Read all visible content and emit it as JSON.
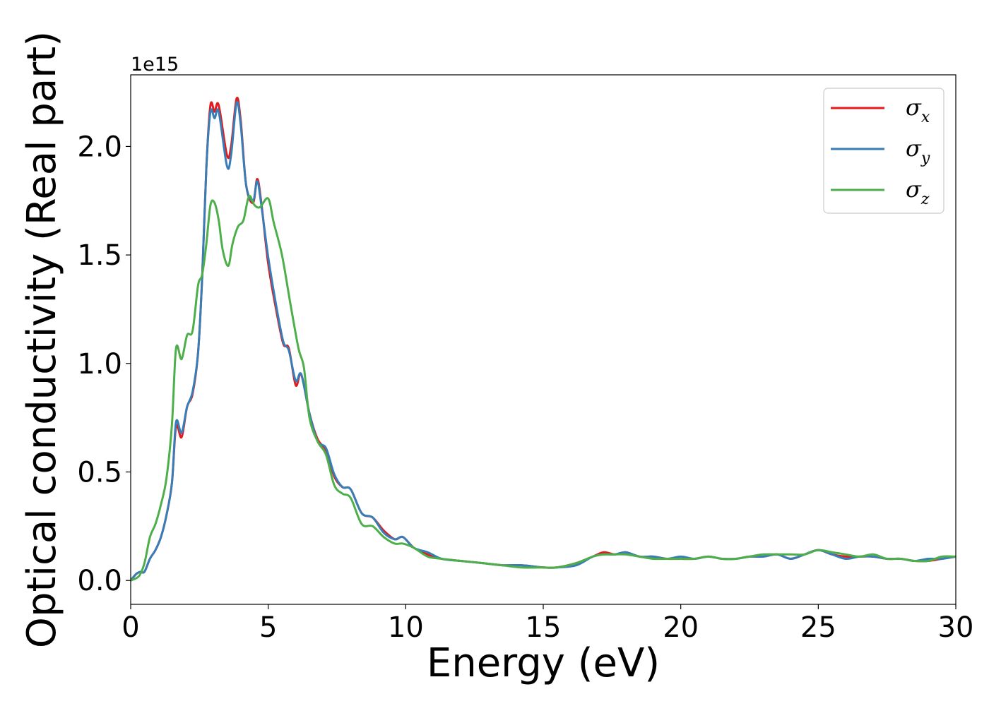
{
  "chart_data": {
    "type": "line",
    "xlabel": "Energy (eV)",
    "ylabel": "Optical conductivity (Real part)",
    "y_offset_label": "1e15",
    "xlim": [
      0,
      30
    ],
    "ylim": [
      -0.11,
      2.33
    ],
    "x_ticks": [
      0,
      5,
      10,
      15,
      20,
      25,
      30
    ],
    "x_tick_labels": [
      "0",
      "5",
      "10",
      "15",
      "20",
      "25",
      "30"
    ],
    "y_ticks": [
      0.0,
      0.5,
      1.0,
      1.5,
      2.0
    ],
    "y_tick_labels": [
      "0.0",
      "0.5",
      "1.0",
      "1.5",
      "2.0"
    ],
    "grid": false,
    "legend_position": "top-right",
    "legend": [
      {
        "symbol": "σ",
        "sub": "x",
        "color": "#e41a1c"
      },
      {
        "symbol": "σ",
        "sub": "y",
        "color": "#377eb8"
      },
      {
        "symbol": "σ",
        "sub": "z",
        "color": "#4daf4a"
      }
    ],
    "series": [
      {
        "key": "sigma_x",
        "color": "#e41a1c",
        "points": [
          [
            0,
            0.0
          ],
          [
            0.2,
            0.03
          ],
          [
            0.35,
            0.04
          ],
          [
            0.5,
            0.04
          ],
          [
            0.7,
            0.1
          ],
          [
            0.9,
            0.14
          ],
          [
            1.1,
            0.2
          ],
          [
            1.3,
            0.3
          ],
          [
            1.5,
            0.45
          ],
          [
            1.65,
            0.71
          ],
          [
            1.85,
            0.66
          ],
          [
            2.05,
            0.8
          ],
          [
            2.25,
            0.86
          ],
          [
            2.45,
            1.05
          ],
          [
            2.6,
            1.4
          ],
          [
            2.75,
            1.9
          ],
          [
            2.9,
            2.19
          ],
          [
            3.05,
            2.16
          ],
          [
            3.2,
            2.19
          ],
          [
            3.5,
            1.96
          ],
          [
            3.65,
            2.0
          ],
          [
            3.85,
            2.22
          ],
          [
            4.0,
            2.12
          ],
          [
            4.2,
            1.82
          ],
          [
            4.45,
            1.74
          ],
          [
            4.6,
            1.85
          ],
          [
            4.75,
            1.74
          ],
          [
            5.0,
            1.46
          ],
          [
            5.3,
            1.24
          ],
          [
            5.55,
            1.09
          ],
          [
            5.75,
            1.07
          ],
          [
            6.0,
            0.9
          ],
          [
            6.2,
            0.95
          ],
          [
            6.5,
            0.77
          ],
          [
            6.8,
            0.65
          ],
          [
            7.1,
            0.6
          ],
          [
            7.4,
            0.48
          ],
          [
            7.7,
            0.43
          ],
          [
            8.0,
            0.42
          ],
          [
            8.4,
            0.31
          ],
          [
            8.8,
            0.29
          ],
          [
            9.2,
            0.23
          ],
          [
            9.6,
            0.19
          ],
          [
            9.9,
            0.2
          ],
          [
            10.3,
            0.15
          ],
          [
            10.8,
            0.12
          ],
          [
            11.3,
            0.1
          ],
          [
            12.0,
            0.09
          ],
          [
            12.8,
            0.08
          ],
          [
            13.5,
            0.07
          ],
          [
            14.2,
            0.07
          ],
          [
            15.0,
            0.06
          ],
          [
            15.5,
            0.06
          ],
          [
            16.2,
            0.08
          ],
          [
            16.8,
            0.11
          ],
          [
            17.2,
            0.13
          ],
          [
            17.6,
            0.12
          ],
          [
            18.0,
            0.13
          ],
          [
            18.5,
            0.11
          ],
          [
            19.0,
            0.11
          ],
          [
            19.5,
            0.1
          ],
          [
            20.0,
            0.1
          ],
          [
            20.5,
            0.1
          ],
          [
            21.0,
            0.11
          ],
          [
            21.5,
            0.1
          ],
          [
            22.0,
            0.1
          ],
          [
            22.5,
            0.11
          ],
          [
            23.0,
            0.11
          ],
          [
            23.5,
            0.12
          ],
          [
            24.0,
            0.1
          ],
          [
            24.5,
            0.12
          ],
          [
            25.0,
            0.14
          ],
          [
            25.5,
            0.12
          ],
          [
            26.0,
            0.11
          ],
          [
            26.5,
            0.11
          ],
          [
            27.0,
            0.11
          ],
          [
            27.5,
            0.1
          ],
          [
            28.0,
            0.1
          ],
          [
            28.5,
            0.09
          ],
          [
            29.0,
            0.09
          ],
          [
            29.5,
            0.1
          ],
          [
            30.0,
            0.11
          ]
        ]
      },
      {
        "key": "sigma_y",
        "color": "#377eb8",
        "points": [
          [
            0,
            0.0
          ],
          [
            0.2,
            0.03
          ],
          [
            0.35,
            0.04
          ],
          [
            0.5,
            0.04
          ],
          [
            0.7,
            0.1
          ],
          [
            0.9,
            0.14
          ],
          [
            1.1,
            0.2
          ],
          [
            1.3,
            0.3
          ],
          [
            1.5,
            0.45
          ],
          [
            1.65,
            0.73
          ],
          [
            1.85,
            0.68
          ],
          [
            2.05,
            0.8
          ],
          [
            2.25,
            0.87
          ],
          [
            2.45,
            1.05
          ],
          [
            2.6,
            1.4
          ],
          [
            2.75,
            1.9
          ],
          [
            2.9,
            2.16
          ],
          [
            3.05,
            2.13
          ],
          [
            3.2,
            2.16
          ],
          [
            3.5,
            1.91
          ],
          [
            3.65,
            1.96
          ],
          [
            3.85,
            2.2
          ],
          [
            4.0,
            2.1
          ],
          [
            4.2,
            1.82
          ],
          [
            4.45,
            1.75
          ],
          [
            4.6,
            1.84
          ],
          [
            4.75,
            1.73
          ],
          [
            5.0,
            1.49
          ],
          [
            5.3,
            1.26
          ],
          [
            5.55,
            1.1
          ],
          [
            5.75,
            1.06
          ],
          [
            6.0,
            0.92
          ],
          [
            6.2,
            0.95
          ],
          [
            6.5,
            0.77
          ],
          [
            6.8,
            0.64
          ],
          [
            7.1,
            0.61
          ],
          [
            7.4,
            0.49
          ],
          [
            7.7,
            0.43
          ],
          [
            8.0,
            0.42
          ],
          [
            8.4,
            0.31
          ],
          [
            8.8,
            0.29
          ],
          [
            9.2,
            0.22
          ],
          [
            9.6,
            0.19
          ],
          [
            9.9,
            0.2
          ],
          [
            10.3,
            0.15
          ],
          [
            10.8,
            0.13
          ],
          [
            11.3,
            0.1
          ],
          [
            12.0,
            0.09
          ],
          [
            12.8,
            0.08
          ],
          [
            13.5,
            0.07
          ],
          [
            14.2,
            0.07
          ],
          [
            15.0,
            0.06
          ],
          [
            15.5,
            0.06
          ],
          [
            16.2,
            0.07
          ],
          [
            16.8,
            0.11
          ],
          [
            17.2,
            0.12
          ],
          [
            17.6,
            0.12
          ],
          [
            18.0,
            0.13
          ],
          [
            18.5,
            0.11
          ],
          [
            19.0,
            0.11
          ],
          [
            19.5,
            0.1
          ],
          [
            20.0,
            0.11
          ],
          [
            20.5,
            0.1
          ],
          [
            21.0,
            0.11
          ],
          [
            21.5,
            0.1
          ],
          [
            22.0,
            0.1
          ],
          [
            22.5,
            0.11
          ],
          [
            23.0,
            0.11
          ],
          [
            23.5,
            0.12
          ],
          [
            24.0,
            0.1
          ],
          [
            24.5,
            0.12
          ],
          [
            25.0,
            0.14
          ],
          [
            25.5,
            0.12
          ],
          [
            26.0,
            0.1
          ],
          [
            26.5,
            0.11
          ],
          [
            27.0,
            0.11
          ],
          [
            27.5,
            0.1
          ],
          [
            28.0,
            0.1
          ],
          [
            28.5,
            0.09
          ],
          [
            29.0,
            0.1
          ],
          [
            29.5,
            0.1
          ],
          [
            30.0,
            0.11
          ]
        ]
      },
      {
        "key": "sigma_z",
        "color": "#4daf4a",
        "points": [
          [
            0,
            0.0
          ],
          [
            0.3,
            0.02
          ],
          [
            0.5,
            0.08
          ],
          [
            0.7,
            0.2
          ],
          [
            0.9,
            0.26
          ],
          [
            1.1,
            0.35
          ],
          [
            1.3,
            0.47
          ],
          [
            1.5,
            0.72
          ],
          [
            1.65,
            1.07
          ],
          [
            1.85,
            1.02
          ],
          [
            2.05,
            1.13
          ],
          [
            2.25,
            1.15
          ],
          [
            2.45,
            1.36
          ],
          [
            2.6,
            1.41
          ],
          [
            2.75,
            1.55
          ],
          [
            2.9,
            1.73
          ],
          [
            3.05,
            1.74
          ],
          [
            3.2,
            1.66
          ],
          [
            3.35,
            1.52
          ],
          [
            3.55,
            1.45
          ],
          [
            3.7,
            1.55
          ],
          [
            3.9,
            1.63
          ],
          [
            4.1,
            1.66
          ],
          [
            4.3,
            1.77
          ],
          [
            4.5,
            1.73
          ],
          [
            4.7,
            1.72
          ],
          [
            5.0,
            1.76
          ],
          [
            5.2,
            1.65
          ],
          [
            5.5,
            1.5
          ],
          [
            5.8,
            1.28
          ],
          [
            6.1,
            1.07
          ],
          [
            6.3,
            0.98
          ],
          [
            6.5,
            0.75
          ],
          [
            6.8,
            0.64
          ],
          [
            7.1,
            0.58
          ],
          [
            7.4,
            0.44
          ],
          [
            7.7,
            0.4
          ],
          [
            8.0,
            0.38
          ],
          [
            8.4,
            0.26
          ],
          [
            8.8,
            0.25
          ],
          [
            9.2,
            0.2
          ],
          [
            9.6,
            0.17
          ],
          [
            9.9,
            0.17
          ],
          [
            10.3,
            0.15
          ],
          [
            10.8,
            0.11
          ],
          [
            11.3,
            0.1
          ],
          [
            12.0,
            0.09
          ],
          [
            12.8,
            0.08
          ],
          [
            13.5,
            0.07
          ],
          [
            14.2,
            0.06
          ],
          [
            15.0,
            0.06
          ],
          [
            15.5,
            0.06
          ],
          [
            16.2,
            0.08
          ],
          [
            16.8,
            0.11
          ],
          [
            17.2,
            0.12
          ],
          [
            17.6,
            0.12
          ],
          [
            18.0,
            0.12
          ],
          [
            18.5,
            0.11
          ],
          [
            19.0,
            0.1
          ],
          [
            19.5,
            0.1
          ],
          [
            20.0,
            0.1
          ],
          [
            20.5,
            0.1
          ],
          [
            21.0,
            0.11
          ],
          [
            21.5,
            0.1
          ],
          [
            22.0,
            0.1
          ],
          [
            22.5,
            0.11
          ],
          [
            23.0,
            0.12
          ],
          [
            23.5,
            0.12
          ],
          [
            24.0,
            0.12
          ],
          [
            24.5,
            0.12
          ],
          [
            25.0,
            0.14
          ],
          [
            25.5,
            0.13
          ],
          [
            26.0,
            0.12
          ],
          [
            26.5,
            0.11
          ],
          [
            27.0,
            0.12
          ],
          [
            27.5,
            0.1
          ],
          [
            28.0,
            0.1
          ],
          [
            28.5,
            0.09
          ],
          [
            29.0,
            0.09
          ],
          [
            29.5,
            0.11
          ],
          [
            30.0,
            0.11
          ]
        ]
      }
    ]
  }
}
